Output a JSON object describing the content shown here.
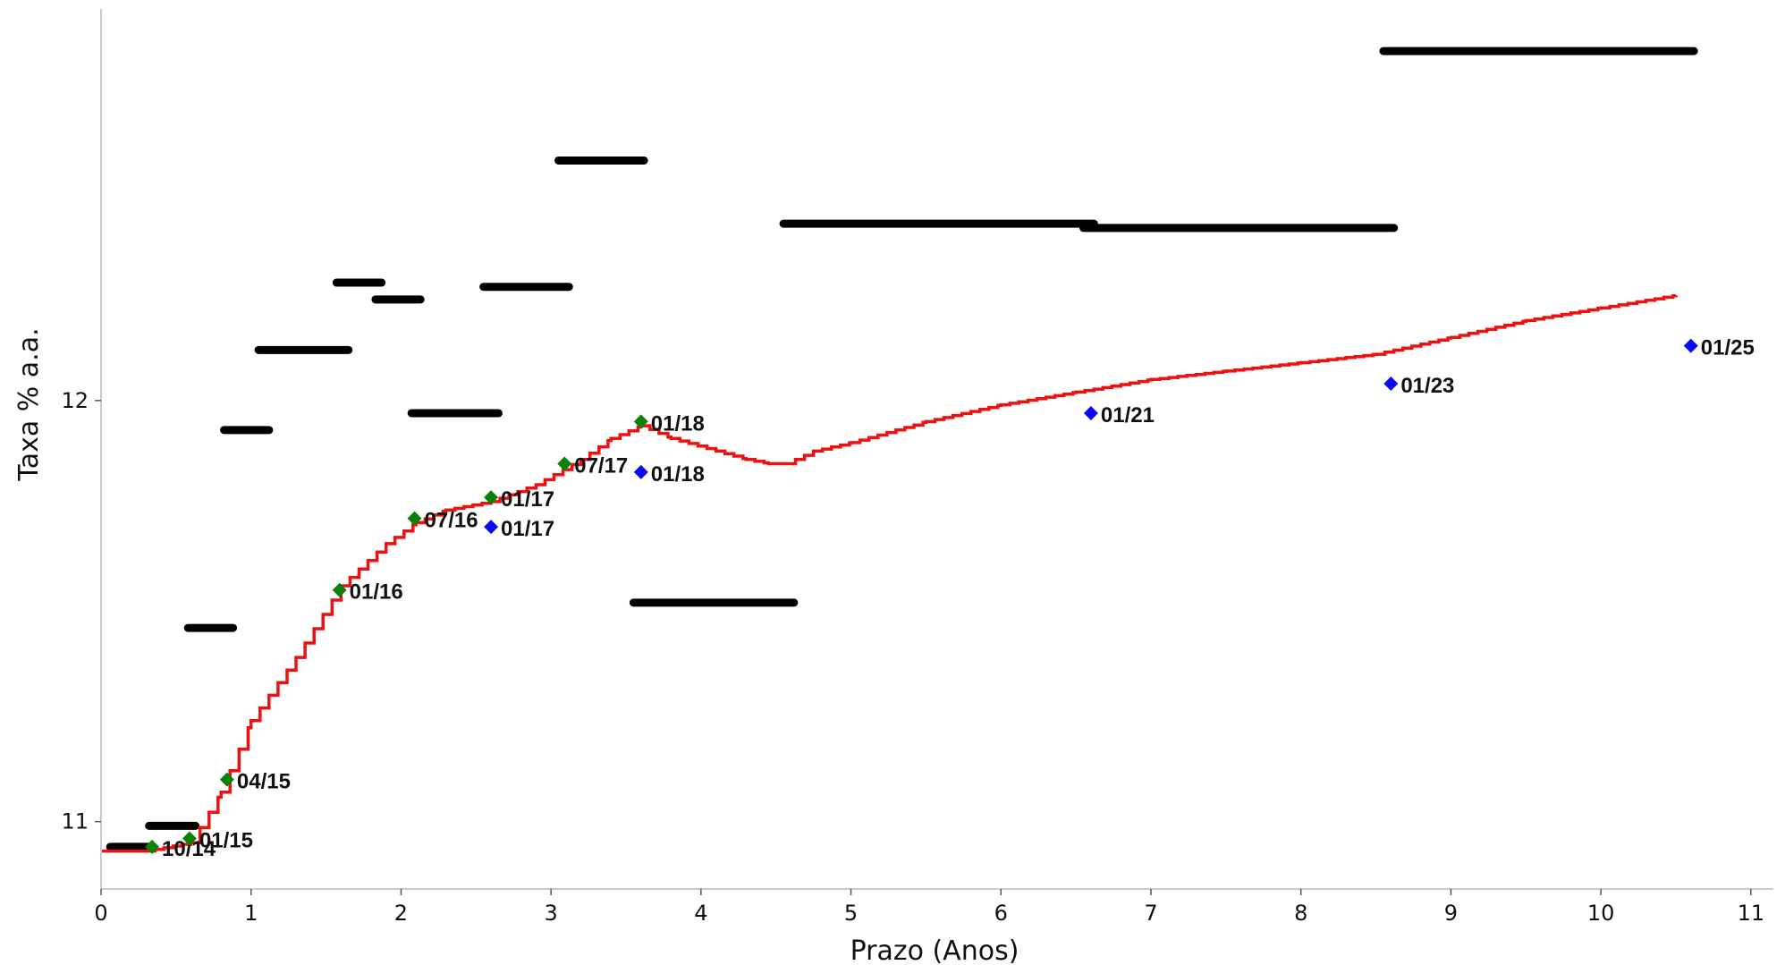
{
  "chart_data": {
    "type": "scatter",
    "xlabel": "Prazo (Anos)",
    "ylabel": "Taxa % a.a.",
    "xlim": [
      0,
      11.15
    ],
    "ylim": [
      10.84,
      12.93
    ],
    "x_ticks": [
      "0",
      "1",
      "2",
      "3",
      "4",
      "5",
      "6",
      "7",
      "8",
      "9",
      "10",
      "11"
    ],
    "y_ticks": [
      "11",
      "12"
    ],
    "colors": {
      "curve": "#ee1111",
      "segments": "#000000",
      "green_points": "#0a820a",
      "blue_points": "#0a0aee"
    },
    "horizontal_segments": [
      {
        "x0": 0.06,
        "x1": 0.34,
        "y": 10.94
      },
      {
        "x0": 0.32,
        "x1": 0.63,
        "y": 10.99
      },
      {
        "x0": 0.58,
        "x1": 0.88,
        "y": 11.46
      },
      {
        "x0": 0.82,
        "x1": 1.12,
        "y": 11.93
      },
      {
        "x0": 1.05,
        "x1": 1.65,
        "y": 12.12
      },
      {
        "x0": 1.57,
        "x1": 1.87,
        "y": 12.28
      },
      {
        "x0": 1.83,
        "x1": 2.13,
        "y": 12.24
      },
      {
        "x0": 2.07,
        "x1": 2.65,
        "y": 11.97
      },
      {
        "x0": 2.55,
        "x1": 3.12,
        "y": 12.27
      },
      {
        "x0": 3.05,
        "x1": 3.62,
        "y": 12.57
      },
      {
        "x0": 3.55,
        "x1": 4.62,
        "y": 11.52
      },
      {
        "x0": 4.55,
        "x1": 6.62,
        "y": 12.42
      },
      {
        "x0": 6.55,
        "x1": 8.62,
        "y": 12.41
      },
      {
        "x0": 8.55,
        "x1": 10.62,
        "y": 12.83
      }
    ],
    "curve_points": [
      [
        0.0,
        10.93
      ],
      [
        0.3,
        10.93
      ],
      [
        0.6,
        10.95
      ],
      [
        0.8,
        11.07
      ],
      [
        1.0,
        11.24
      ],
      [
        1.3,
        11.39
      ],
      [
        1.6,
        11.56
      ],
      [
        1.9,
        11.66
      ],
      [
        2.1,
        11.71
      ],
      [
        2.3,
        11.74
      ],
      [
        2.6,
        11.76
      ],
      [
        2.9,
        11.8
      ],
      [
        3.2,
        11.86
      ],
      [
        3.4,
        11.91
      ],
      [
        3.6,
        11.94
      ],
      [
        3.8,
        11.91
      ],
      [
        4.1,
        11.88
      ],
      [
        4.3,
        11.86
      ],
      [
        4.45,
        11.85
      ],
      [
        4.57,
        11.85
      ],
      [
        4.75,
        11.88
      ],
      [
        5.0,
        11.9
      ],
      [
        5.5,
        11.95
      ],
      [
        6.0,
        11.99
      ],
      [
        6.5,
        12.02
      ],
      [
        7.0,
        12.05
      ],
      [
        7.5,
        12.07
      ],
      [
        8.0,
        12.09
      ],
      [
        8.5,
        12.11
      ],
      [
        9.0,
        12.15
      ],
      [
        9.5,
        12.19
      ],
      [
        10.0,
        12.22
      ],
      [
        10.5,
        12.25
      ]
    ],
    "green_points": [
      {
        "x": 0.34,
        "y": 10.94,
        "label": "10/14"
      },
      {
        "x": 0.59,
        "y": 10.96,
        "label": "01/15"
      },
      {
        "x": 0.84,
        "y": 11.1,
        "label": "04/15"
      },
      {
        "x": 1.59,
        "y": 11.55,
        "label": "01/16"
      },
      {
        "x": 2.09,
        "y": 11.72,
        "label": "07/16"
      },
      {
        "x": 2.6,
        "y": 11.77,
        "label": "01/17"
      },
      {
        "x": 3.09,
        "y": 11.85,
        "label": "07/17"
      },
      {
        "x": 3.6,
        "y": 11.95,
        "label": "01/18"
      }
    ],
    "blue_points": [
      {
        "x": 2.6,
        "y": 11.7,
        "label": "01/17"
      },
      {
        "x": 3.6,
        "y": 11.83,
        "label": "01/18"
      },
      {
        "x": 6.6,
        "y": 11.97,
        "label": "01/21"
      },
      {
        "x": 8.6,
        "y": 12.04,
        "label": "01/23"
      },
      {
        "x": 10.6,
        "y": 12.13,
        "label": "01/25"
      }
    ]
  }
}
